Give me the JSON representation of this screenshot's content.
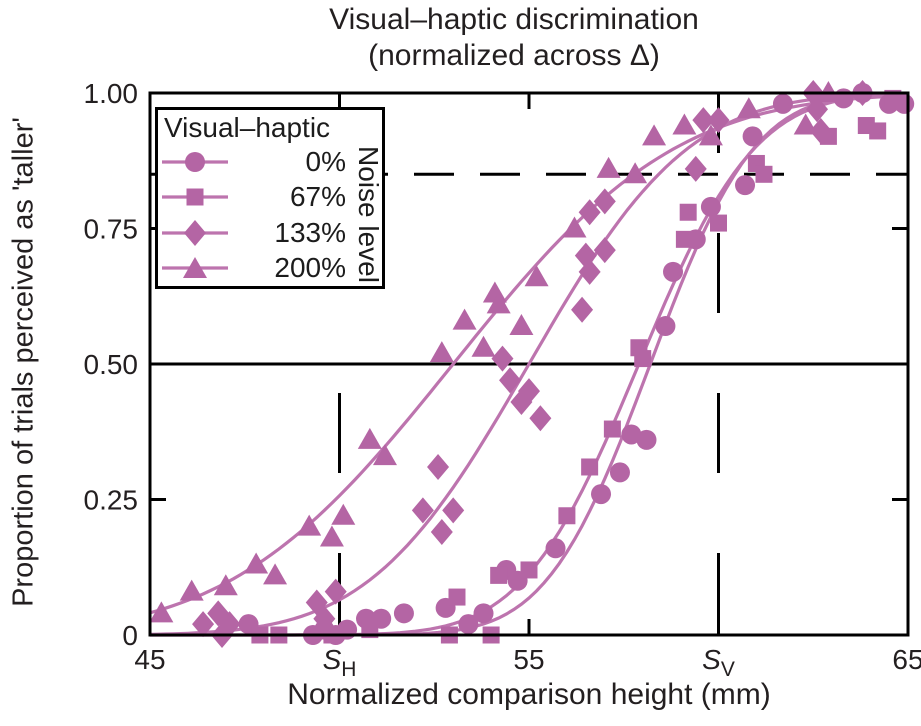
{
  "title": {
    "line1": "Visual–haptic discrimination",
    "line2": "(normalized across Δ)"
  },
  "axes": {
    "x": {
      "label": "Normalized comparison height (mm)",
      "range": [
        45,
        65
      ],
      "ticks": [
        {
          "label": "45",
          "value": 45
        },
        {
          "label": "S",
          "sub": "H",
          "value": 50
        },
        {
          "label": "55",
          "value": 55
        },
        {
          "label": "S",
          "sub": "V",
          "value": 60
        },
        {
          "label": "65",
          "value": 65
        }
      ]
    },
    "y": {
      "label": "Proportion of trials perceived as 'taller'",
      "range": [
        0,
        1
      ],
      "ticks": [
        {
          "label": "0",
          "value": 0
        },
        {
          "label": "0.25",
          "value": 0.25
        },
        {
          "label": "0.50",
          "value": 0.5
        },
        {
          "label": "0.75",
          "value": 0.75
        },
        {
          "label": "1.00",
          "value": 1.0
        }
      ]
    }
  },
  "legend": {
    "title": "Visual–haptic",
    "side_label": "Noise level",
    "entries": [
      {
        "label": "0%",
        "marker": "circle"
      },
      {
        "label": "67%",
        "marker": "square"
      },
      {
        "label": "133%",
        "marker": "diamond"
      },
      {
        "label": "200%",
        "marker": "triangle"
      }
    ]
  },
  "colors": {
    "marker": "#b465a4",
    "curve": "#bd74ae",
    "axis": "#000000",
    "text": "#231f20",
    "background": "#ffffff"
  },
  "chart_data": {
    "type": "scatter",
    "title": "Visual–haptic discrimination (normalized across Δ)",
    "xlabel": "Normalized comparison height (mm)",
    "ylabel": "Proportion of trials perceived as 'taller'",
    "xlim": [
      45,
      65
    ],
    "ylim": [
      0,
      1
    ],
    "grid": false,
    "legend_position": "upper-left",
    "special_x_ticks": {
      "S_H": 50,
      "S_V": 60
    },
    "reference_lines": [
      {
        "orientation": "horizontal",
        "value": 0.5,
        "style": "solid",
        "span": "full"
      },
      {
        "orientation": "horizontal",
        "value": 0.85,
        "style": "dashed",
        "span": "full"
      },
      {
        "orientation": "vertical",
        "value": 50,
        "style": "dashed",
        "from": 0,
        "to": 0.5,
        "label": "S_H"
      },
      {
        "orientation": "vertical",
        "value": 60,
        "style": "dashed",
        "from": 0,
        "to": 1.0,
        "label": "S_V"
      }
    ],
    "series": [
      {
        "name": "0%",
        "marker": "circle",
        "fit": {
          "type": "cumulative-gaussian",
          "pse_mm": 58.2,
          "sigma_mm": 2.15
        },
        "points": [
          [
            47.6,
            0.02
          ],
          [
            49.3,
            0.0
          ],
          [
            49.6,
            0.01
          ],
          [
            49.9,
            0.0
          ],
          [
            50.2,
            0.01
          ],
          [
            50.7,
            0.03
          ],
          [
            51.1,
            0.03
          ],
          [
            51.7,
            0.04
          ],
          [
            52.8,
            0.05
          ],
          [
            53.4,
            0.02
          ],
          [
            53.8,
            0.04
          ],
          [
            54.4,
            0.12
          ],
          [
            54.7,
            0.1
          ],
          [
            55.7,
            0.16
          ],
          [
            56.9,
            0.26
          ],
          [
            57.4,
            0.3
          ],
          [
            57.7,
            0.37
          ],
          [
            58.1,
            0.36
          ],
          [
            58.6,
            0.57
          ],
          [
            58.8,
            0.67
          ],
          [
            59.4,
            0.73
          ],
          [
            59.8,
            0.79
          ],
          [
            60.7,
            0.83
          ],
          [
            60.9,
            0.92
          ],
          [
            61.7,
            0.98
          ],
          [
            63.3,
            0.99
          ],
          [
            63.8,
            1.0
          ],
          [
            64.5,
            0.98
          ],
          [
            64.9,
            0.98
          ]
        ]
      },
      {
        "name": "67%",
        "marker": "square",
        "fit": {
          "type": "cumulative-gaussian",
          "pse_mm": 57.9,
          "sigma_mm": 2.4
        },
        "points": [
          [
            47.9,
            0.0
          ],
          [
            48.4,
            0.0
          ],
          [
            49.8,
            0.0
          ],
          [
            50.8,
            0.01
          ],
          [
            52.9,
            0.0
          ],
          [
            53.1,
            0.07
          ],
          [
            54.0,
            0.0
          ],
          [
            54.2,
            0.11
          ],
          [
            55.0,
            0.12
          ],
          [
            56.0,
            0.22
          ],
          [
            56.6,
            0.31
          ],
          [
            57.2,
            0.38
          ],
          [
            57.9,
            0.53
          ],
          [
            58.0,
            0.51
          ],
          [
            59.1,
            0.73
          ],
          [
            59.2,
            0.78
          ],
          [
            60.0,
            0.76
          ],
          [
            61.0,
            0.87
          ],
          [
            61.2,
            0.85
          ],
          [
            62.9,
            0.92
          ],
          [
            63.9,
            0.94
          ],
          [
            64.2,
            0.93
          ],
          [
            64.6,
            0.99
          ]
        ]
      },
      {
        "name": "133%",
        "marker": "diamond",
        "fit": {
          "type": "cumulative-gaussian",
          "pse_mm": 55.0,
          "sigma_mm": 3.3
        },
        "points": [
          [
            46.4,
            0.02
          ],
          [
            46.8,
            0.04
          ],
          [
            46.9,
            0.0
          ],
          [
            47.1,
            0.02
          ],
          [
            49.4,
            0.06
          ],
          [
            49.6,
            0.03
          ],
          [
            49.9,
            0.08
          ],
          [
            52.2,
            0.23
          ],
          [
            52.6,
            0.31
          ],
          [
            52.7,
            0.19
          ],
          [
            53.0,
            0.23
          ],
          [
            54.3,
            0.51
          ],
          [
            54.5,
            0.47
          ],
          [
            54.8,
            0.43
          ],
          [
            55.0,
            0.45
          ],
          [
            55.3,
            0.4
          ],
          [
            56.4,
            0.6
          ],
          [
            56.5,
            0.7
          ],
          [
            56.6,
            0.67
          ],
          [
            56.6,
            0.78
          ],
          [
            57.0,
            0.71
          ],
          [
            57.0,
            0.8
          ],
          [
            59.4,
            0.86
          ],
          [
            59.6,
            0.95
          ],
          [
            60.0,
            0.95
          ],
          [
            62.5,
            1.0
          ],
          [
            62.6,
            0.97
          ],
          [
            62.7,
            0.93
          ],
          [
            63.8,
            1.0
          ]
        ]
      },
      {
        "name": "200%",
        "marker": "triangle",
        "fit": {
          "type": "cumulative-gaussian",
          "pse_mm": 53.0,
          "sigma_mm": 4.6
        },
        "points": [
          [
            45.3,
            0.04
          ],
          [
            46.1,
            0.08
          ],
          [
            47.0,
            0.09
          ],
          [
            47.8,
            0.13
          ],
          [
            48.3,
            0.11
          ],
          [
            49.2,
            0.2
          ],
          [
            49.8,
            0.18
          ],
          [
            50.1,
            0.22
          ],
          [
            50.8,
            0.36
          ],
          [
            51.2,
            0.33
          ],
          [
            52.7,
            0.52
          ],
          [
            53.3,
            0.58
          ],
          [
            53.8,
            0.53
          ],
          [
            54.1,
            0.63
          ],
          [
            54.2,
            0.61
          ],
          [
            54.8,
            0.57
          ],
          [
            55.2,
            0.66
          ],
          [
            56.2,
            0.75
          ],
          [
            57.1,
            0.86
          ],
          [
            57.8,
            0.85
          ],
          [
            58.3,
            0.92
          ],
          [
            59.1,
            0.94
          ],
          [
            59.8,
            0.92
          ],
          [
            60.8,
            0.97
          ],
          [
            62.3,
            0.94
          ],
          [
            62.9,
            1.0
          ]
        ]
      }
    ]
  }
}
